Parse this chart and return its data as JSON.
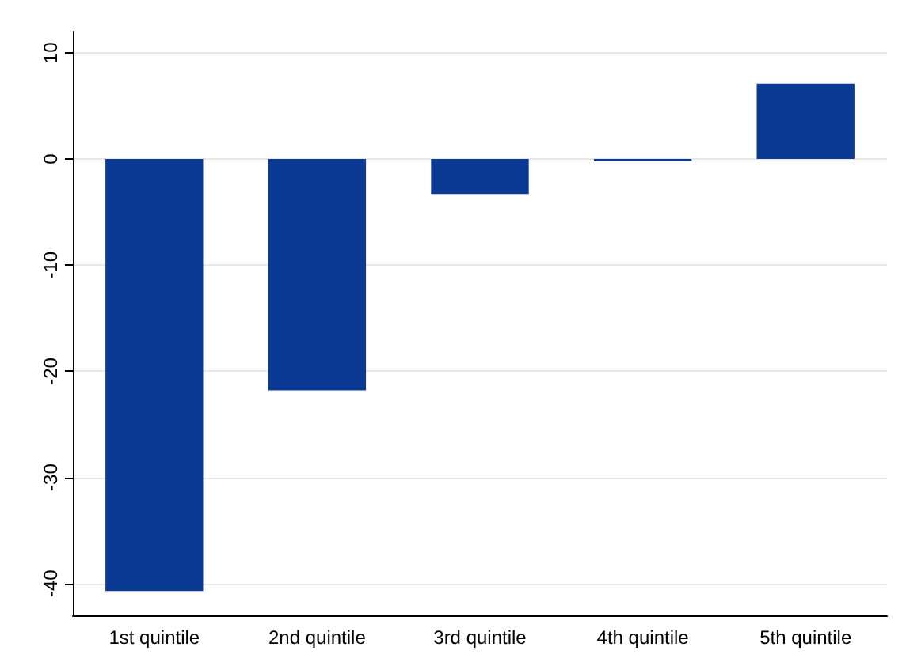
{
  "chart_data": {
    "type": "bar",
    "categories": [
      "1st quintile",
      "2nd quintile",
      "3rd quintile",
      "4th quintile",
      "5th quintile"
    ],
    "values": [
      -40.7,
      -21.8,
      -3.3,
      -0.2,
      7.1
    ],
    "color": "#0a3a94",
    "ylim": [
      -43,
      12
    ],
    "yticks": [
      -40,
      -30,
      -20,
      -10,
      0,
      10
    ],
    "grid": "y"
  }
}
